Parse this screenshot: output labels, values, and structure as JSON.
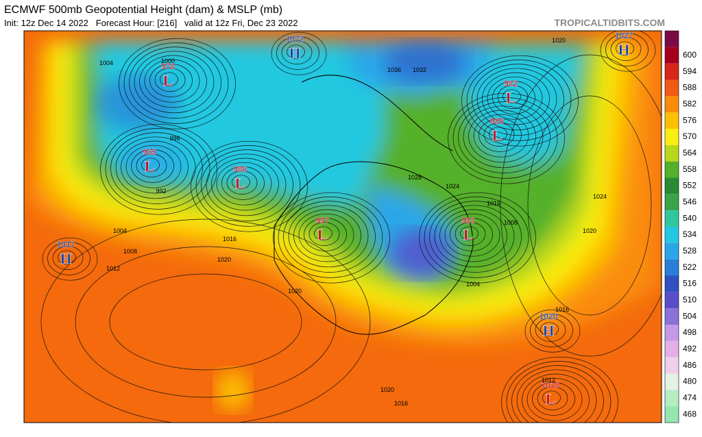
{
  "header": {
    "title": "ECMWF 500mb Geopotential Height (dam) & MSLP (mb)",
    "subtitle": "Init: 12z Dec 14 2022   Forecast Hour: [216]   valid at 12z Fri, Dec 23 2022",
    "brand": "TROPICALTIDBITS.COM"
  },
  "colorbar": {
    "top_color": "#7c0b45",
    "levels": [
      600,
      594,
      588,
      582,
      576,
      570,
      564,
      558,
      552,
      546,
      540,
      534,
      528,
      522,
      516,
      510,
      504,
      498,
      492,
      486,
      480,
      474,
      468
    ],
    "colors": [
      "#a4001e",
      "#d8261c",
      "#f05a14",
      "#fa8c0a",
      "#fcc000",
      "#fbee10",
      "#b8d81a",
      "#55b02a",
      "#2a8a36",
      "#3aa34a",
      "#30c6a0",
      "#22c8e0",
      "#2aa6e8",
      "#2a7ed8",
      "#3050c0",
      "#5a4ec8",
      "#8a72d8",
      "#c49ae6",
      "#e2b0e6",
      "#f0cfee",
      "#e4f2e4",
      "#b6eec4",
      "#96e6b0"
    ]
  },
  "systems": [
    {
      "kind": "H",
      "value": "1072"
    },
    {
      "kind": "L",
      "value": "978"
    },
    {
      "kind": "L",
      "value": "982"
    },
    {
      "kind": "L",
      "value": "985"
    },
    {
      "kind": "L",
      "value": "965"
    },
    {
      "kind": "L",
      "value": "986"
    },
    {
      "kind": "L",
      "value": "997"
    },
    {
      "kind": "L",
      "value": "983"
    },
    {
      "kind": "H",
      "value": "1017"
    },
    {
      "kind": "H",
      "value": "1020"
    },
    {
      "kind": "H",
      "value": "1027"
    },
    {
      "kind": "L",
      "value": "1010"
    }
  ],
  "isobar_labels": [
    "1004",
    "1000",
    "996",
    "992",
    "1004",
    "1008",
    "1012",
    "1016",
    "1020",
    "1020",
    "1024",
    "1020",
    "1016",
    "1008",
    "1004",
    "1036",
    "1032",
    "1028",
    "1024",
    "1020",
    "1016",
    "1012",
    "1016",
    "1020"
  ]
}
